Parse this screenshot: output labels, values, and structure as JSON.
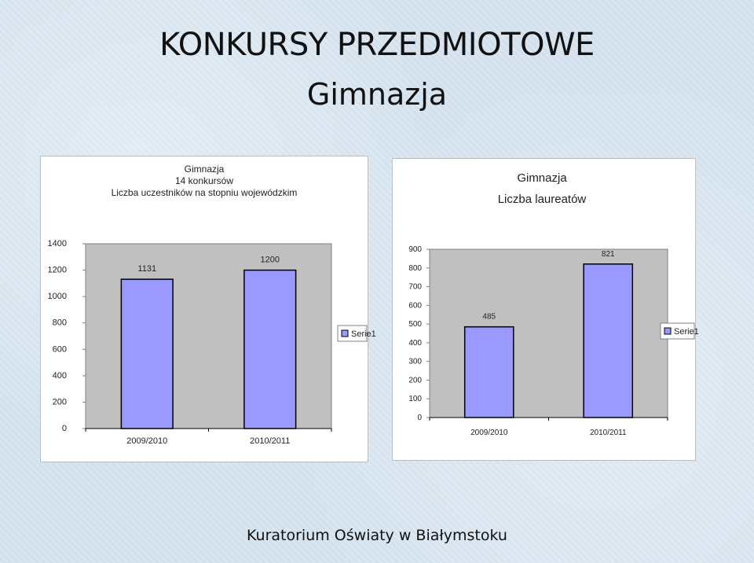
{
  "slide": {
    "title": "KONKURSY PRZEDMIOTOWE",
    "subtitle": "Gimnazja",
    "footer": "Kuratorium Oświaty w Białymstoku"
  },
  "chart_data": [
    {
      "type": "bar",
      "title_lines": [
        "Gimnazja",
        "14 konkursów",
        "Liczba uczestników na stopniu wojewódzkim"
      ],
      "categories": [
        "2009/2010",
        "2010/2011"
      ],
      "series": [
        {
          "name": "Serie1",
          "values": [
            1131,
            1200
          ]
        }
      ],
      "ylim": [
        0,
        1400
      ],
      "yticks": [
        0,
        200,
        400,
        600,
        800,
        1000,
        1200,
        1400
      ],
      "bar_color": "#9999ff",
      "plot_color": "#c0c0c0",
      "grid": false,
      "legend": "right"
    },
    {
      "type": "bar",
      "title_lines": [
        "Gimnazja",
        "Liczba laureatów"
      ],
      "categories": [
        "2009/2010",
        "2010/2011"
      ],
      "series": [
        {
          "name": "Serie1",
          "values": [
            485,
            821
          ]
        }
      ],
      "ylim": [
        0,
        900
      ],
      "yticks": [
        0,
        100,
        200,
        300,
        400,
        500,
        600,
        700,
        800,
        900
      ],
      "bar_color": "#9999ff",
      "plot_color": "#c0c0c0",
      "grid": false,
      "legend": "right"
    }
  ]
}
